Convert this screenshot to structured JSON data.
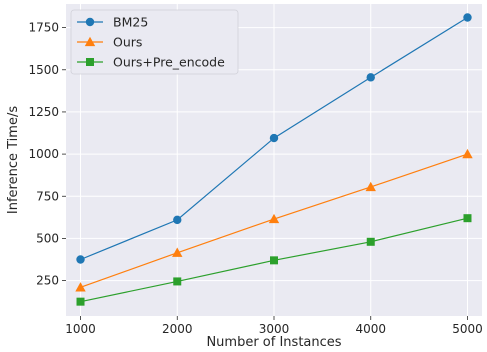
{
  "chart_data": {
    "type": "line",
    "title": "",
    "xlabel": "Number of Instances",
    "ylabel": "Inference Time/s",
    "x": [
      1000,
      2000,
      3000,
      4000,
      5000
    ],
    "x_ticks": [
      "1000",
      "2000",
      "3000",
      "4000",
      "5000"
    ],
    "y_ticks": [
      "250",
      "500",
      "750",
      "1000",
      "1250",
      "1500",
      "1750"
    ],
    "xlim": [
      850,
      5150
    ],
    "ylim": [
      40,
      1890
    ],
    "grid": true,
    "legend_position": "top-left",
    "series": [
      {
        "name": "BM25",
        "values": [
          375,
          610,
          1095,
          1455,
          1810
        ],
        "color": "#1f77b4",
        "marker": "circle"
      },
      {
        "name": "Ours",
        "values": [
          210,
          415,
          615,
          805,
          1000
        ],
        "color": "#ff7f0e",
        "marker": "triangle"
      },
      {
        "name": "Ours+Pre_encode",
        "values": [
          125,
          245,
          370,
          480,
          620
        ],
        "color": "#2ca02c",
        "marker": "square"
      }
    ],
    "background": "#eaeaf2"
  }
}
